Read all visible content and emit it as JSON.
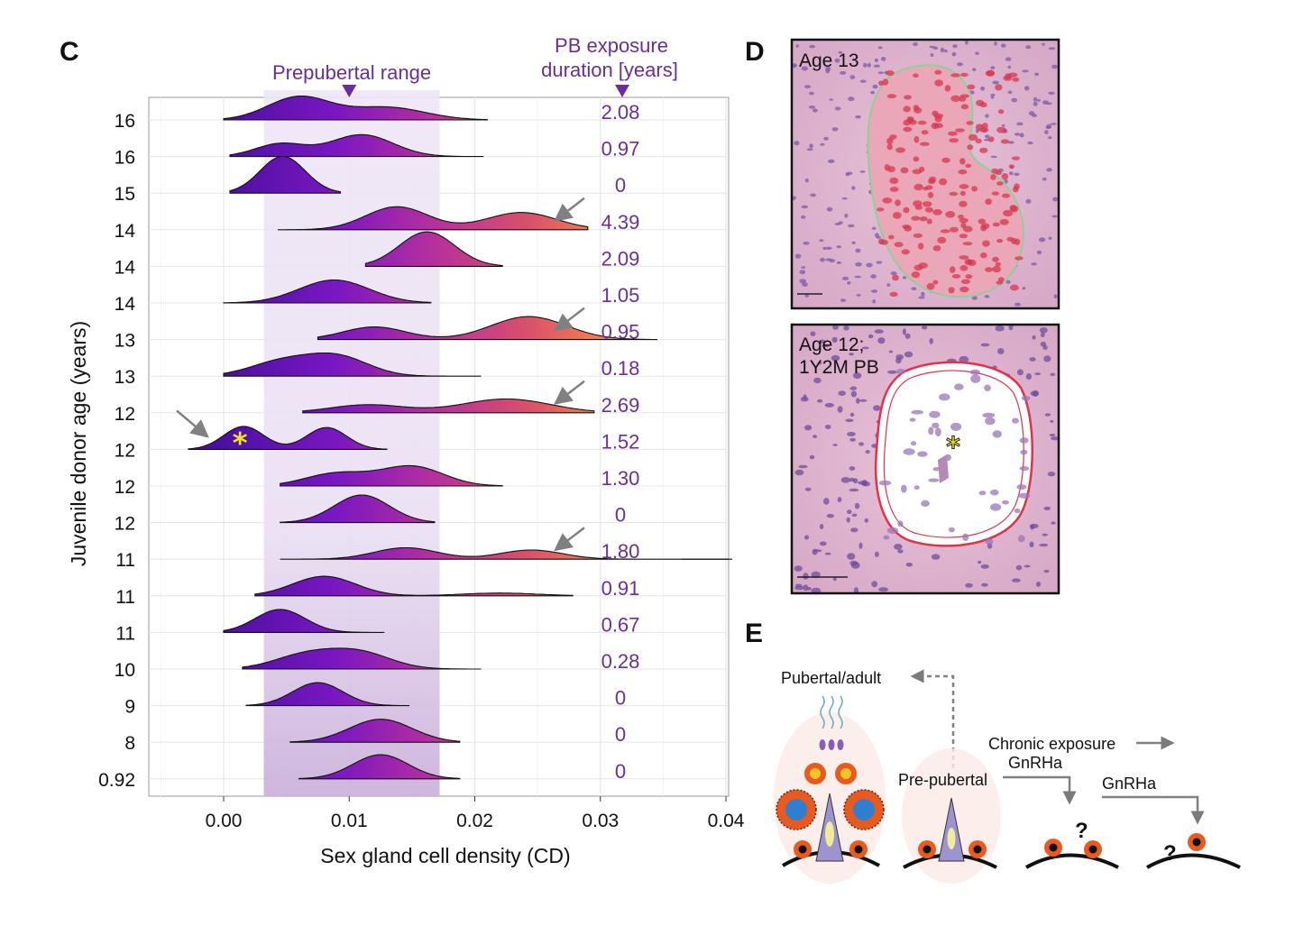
{
  "panels": {
    "c": "C",
    "d": "D",
    "e": "E"
  },
  "chart_data": {
    "type": "ridgeline",
    "xlabel": "Sex gland cell density (CD)",
    "ylabel": "Juvenile donor age (years)",
    "xlim": [
      -0.006,
      0.04
    ],
    "xticks": [
      "0.00",
      "0.01",
      "0.02",
      "0.03",
      "0.04"
    ],
    "xtick_values": [
      0.0,
      0.01,
      0.02,
      0.03,
      0.04
    ],
    "grid": true,
    "band_label": "Prepubertal range",
    "band_range": [
      0.0032,
      0.0172
    ],
    "band_marker": 0.01,
    "pb_header": [
      "PB exposure",
      "duration [years]"
    ],
    "colormap": [
      "#4b0fa0",
      "#7a17c2",
      "#b52f9e",
      "#d9506b",
      "#f2834e"
    ],
    "rows": [
      {
        "age": "16",
        "pb": "2.08",
        "peaks": [
          [
            0.006,
            0.0025,
            1.0
          ],
          [
            0.013,
            0.003,
            0.55
          ]
        ],
        "range": [
          0.0,
          0.021
        ],
        "arrow": false,
        "star": null
      },
      {
        "age": "16",
        "pb": "0.97",
        "peaks": [
          [
            0.0045,
            0.002,
            0.55
          ],
          [
            0.011,
            0.0025,
            0.95
          ]
        ],
        "range": [
          0.0005,
          0.0207
        ],
        "arrow": false,
        "star": null
      },
      {
        "age": "15",
        "pb": "0",
        "peaks": [
          [
            0.0047,
            0.0018,
            1.6
          ]
        ],
        "range": [
          0.0005,
          0.0093
        ],
        "arrow": false,
        "star": null
      },
      {
        "age": "14",
        "pb": "4.39",
        "peaks": [
          [
            0.0138,
            0.0025,
            1.0
          ],
          [
            0.0237,
            0.0028,
            0.75
          ]
        ],
        "range": [
          0.0043,
          0.029
        ],
        "arrow": true,
        "star": null
      },
      {
        "age": "14",
        "pb": "2.09",
        "peaks": [
          [
            0.0162,
            0.0022,
            1.5
          ]
        ],
        "range": [
          0.0113,
          0.0222
        ],
        "arrow": false,
        "star": null
      },
      {
        "age": "14",
        "pb": "1.05",
        "peaks": [
          [
            0.0088,
            0.0028,
            1.0
          ]
        ],
        "range": [
          0.0,
          0.0165
        ],
        "arrow": false,
        "star": null
      },
      {
        "age": "13",
        "pb": "0.95",
        "peaks": [
          [
            0.012,
            0.0025,
            0.55
          ],
          [
            0.0243,
            0.003,
            1.0
          ]
        ],
        "range": [
          0.0075,
          0.0345
        ],
        "arrow": true,
        "star": null
      },
      {
        "age": "13",
        "pb": "0.18",
        "peaks": [
          [
            0.0045,
            0.0025,
            0.6
          ],
          [
            0.009,
            0.0025,
            0.85
          ]
        ],
        "range": [
          0.0,
          0.0205
        ],
        "arrow": false,
        "star": null
      },
      {
        "age": "12",
        "pb": "2.69",
        "peaks": [
          [
            0.0115,
            0.003,
            0.35
          ],
          [
            0.0225,
            0.0035,
            0.6
          ]
        ],
        "range": [
          0.0063,
          0.0295
        ],
        "arrow": true,
        "star": null
      },
      {
        "age": "12",
        "pb": "1.52",
        "peaks": [
          [
            0.0016,
            0.0016,
            1.0
          ],
          [
            0.0082,
            0.0016,
            0.95
          ]
        ],
        "range": [
          -0.0028,
          0.013
        ],
        "arrow": true,
        "star": 0.0013
      },
      {
        "age": "12",
        "pb": "1.30",
        "peaks": [
          [
            0.009,
            0.0025,
            0.55
          ],
          [
            0.015,
            0.0025,
            0.85
          ]
        ],
        "range": [
          0.0045,
          0.0222
        ],
        "arrow": false,
        "star": null
      },
      {
        "age": "12",
        "pb": "0",
        "peaks": [
          [
            0.011,
            0.0022,
            1.2
          ]
        ],
        "range": [
          0.0045,
          0.0168
        ],
        "arrow": false,
        "star": null
      },
      {
        "age": "11",
        "pb": "1.80",
        "peaks": [
          [
            0.0145,
            0.0025,
            0.5
          ],
          [
            0.0245,
            0.0025,
            0.4
          ]
        ],
        "range": [
          0.0045,
          0.0405
        ],
        "arrow": true,
        "star": null
      },
      {
        "age": "11",
        "pb": "0.91",
        "peaks": [
          [
            0.008,
            0.0025,
            0.85
          ],
          [
            0.022,
            0.003,
            0.12
          ]
        ],
        "range": [
          0.0025,
          0.0278
        ],
        "arrow": false,
        "star": null
      },
      {
        "age": "11",
        "pb": "0.67",
        "peaks": [
          [
            0.0045,
            0.002,
            1.0
          ]
        ],
        "range": [
          0.0,
          0.0128
        ],
        "arrow": false,
        "star": null
      },
      {
        "age": "10",
        "pb": "0.28",
        "peaks": [
          [
            0.0065,
            0.0025,
            0.6
          ],
          [
            0.0108,
            0.0025,
            0.7
          ]
        ],
        "range": [
          0.0015,
          0.0205
        ],
        "arrow": false,
        "star": null
      },
      {
        "age": "9",
        "pb": "0",
        "peaks": [
          [
            0.0075,
            0.002,
            1.0
          ]
        ],
        "range": [
          0.0018,
          0.0148
        ],
        "arrow": false,
        "star": null
      },
      {
        "age": "8",
        "pb": "0",
        "peaks": [
          [
            0.0125,
            0.0025,
            1.0
          ]
        ],
        "range": [
          0.0053,
          0.0188
        ],
        "arrow": false,
        "star": null
      },
      {
        "age": "0.92",
        "pb": "0",
        "peaks": [
          [
            0.0125,
            0.0022,
            1.05
          ]
        ],
        "range": [
          0.006,
          0.0188
        ],
        "arrow": false,
        "star": null
      }
    ]
  },
  "micrographs": {
    "top_label": "Age 13",
    "bottom_label_line1": "Age 12;",
    "bottom_label_line2": "1Y2M PB"
  },
  "schematic": {
    "pubertal_label": "Pubertal/adult",
    "chronic_label": "Chronic exposure",
    "prepubertal_label": "Pre-pubertal",
    "gnrha_label_1": "GnRHa",
    "gnrha_label_2": "GnRHa",
    "question_mark": "?"
  }
}
